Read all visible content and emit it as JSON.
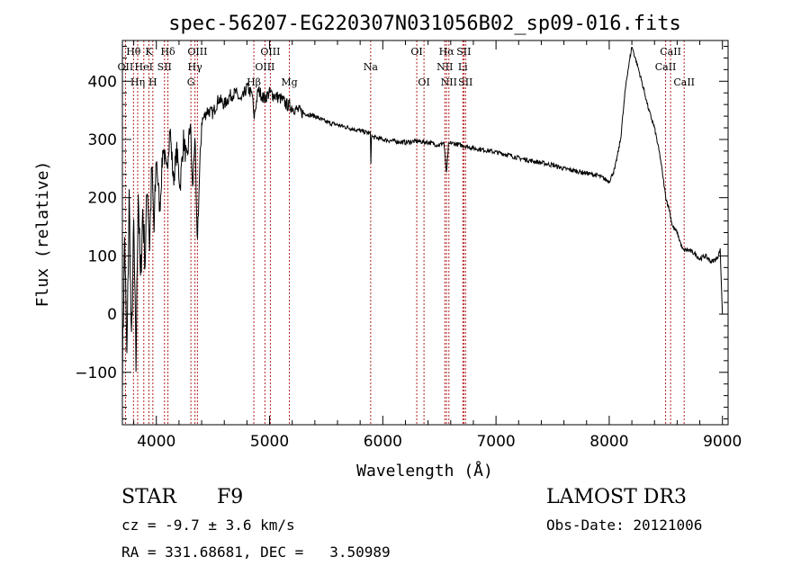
{
  "chart_data": {
    "type": "line",
    "title": "spec-56207-EG220307N031056B02_sp09-016.fits",
    "xlabel": "Wavelength (Å)",
    "ylabel": "Flux (relative)",
    "xlim": [
      3700,
      9050
    ],
    "ylim": [
      -190,
      470
    ],
    "xticks": [
      4000,
      5000,
      6000,
      7000,
      8000,
      9000
    ],
    "yticks": [
      -100,
      0,
      100,
      200,
      300,
      400
    ],
    "series": [
      {
        "x": [
          3700,
          3720,
          3740,
          3760,
          3780,
          3800,
          3820,
          3840,
          3860,
          3880,
          3900,
          3920,
          3940,
          3960,
          3980,
          4000,
          4030,
          4060,
          4090,
          4120,
          4150,
          4180,
          4210,
          4240,
          4270,
          4300,
          4320,
          4340,
          4360,
          4400,
          4450,
          4500,
          4550,
          4600,
          4650,
          4700,
          4750,
          4800,
          4850,
          4861,
          4900,
          4950,
          5000,
          5050,
          5100,
          5150,
          5200,
          5300,
          5400,
          5500,
          5600,
          5700,
          5800,
          5890,
          5895,
          5900,
          6000,
          6100,
          6200,
          6300,
          6400,
          6500,
          6540,
          6563,
          6580,
          6600,
          6700,
          6800,
          6900,
          7000,
          7100,
          7200,
          7300,
          7400,
          7500,
          7600,
          7700,
          7800,
          7900,
          8000,
          8050,
          8100,
          8150,
          8200,
          8230,
          8260,
          8300,
          8350,
          8400,
          8450,
          8500,
          8530,
          8560,
          8600,
          8650,
          8700,
          8750,
          8800,
          8850,
          8900,
          8950,
          8980,
          9000
        ],
        "y": [
          -100,
          130,
          -80,
          200,
          -60,
          150,
          -90,
          220,
          50,
          180,
          90,
          230,
          120,
          250,
          140,
          270,
          180,
          290,
          240,
          320,
          230,
          280,
          220,
          300,
          260,
          330,
          210,
          310,
          120,
          330,
          350,
          345,
          370,
          360,
          375,
          380,
          365,
          390,
          375,
          335,
          385,
          370,
          380,
          375,
          370,
          360,
          355,
          345,
          340,
          330,
          325,
          320,
          315,
          310,
          260,
          305,
          300,
          297,
          295,
          297,
          295,
          290,
          295,
          240,
          290,
          294,
          290,
          285,
          282,
          278,
          274,
          268,
          264,
          260,
          256,
          250,
          246,
          242,
          238,
          228,
          250,
          300,
          400,
          460,
          440,
          420,
          390,
          350,
          320,
          270,
          200,
          180,
          150,
          140,
          110,
          110,
          105,
          95,
          100,
          90,
          95,
          110,
          0
        ]
      }
    ],
    "line_labels": [
      {
        "text": "Hθ",
        "x": 3798,
        "row": 1
      },
      {
        "text": "OII",
        "x": 3727,
        "row": 2
      },
      {
        "text": "Hη",
        "x": 3835,
        "row": 3
      },
      {
        "text": "K",
        "x": 3934,
        "row": 1
      },
      {
        "text": "HeI",
        "x": 3889,
        "row": 2
      },
      {
        "text": "H",
        "x": 3969,
        "row": 3
      },
      {
        "text": "Hδ",
        "x": 4102,
        "row": 1
      },
      {
        "text": "SII",
        "x": 4072,
        "row": 2
      },
      {
        "text": "OIII",
        "x": 4363,
        "row": 1
      },
      {
        "text": "Hγ",
        "x": 4341,
        "row": 2
      },
      {
        "text": "G",
        "x": 4305,
        "row": 3
      },
      {
        "text": "OIII",
        "x": 5007,
        "row": 1
      },
      {
        "text": "OIII",
        "x": 4959,
        "row": 2
      },
      {
        "text": "Hβ",
        "x": 4861,
        "row": 3
      },
      {
        "text": "Mg",
        "x": 5175,
        "row": 3
      },
      {
        "text": "Na",
        "x": 5893,
        "row": 2
      },
      {
        "text": "OI",
        "x": 6300,
        "row": 1
      },
      {
        "text": "OI",
        "x": 6364,
        "row": 3
      },
      {
        "text": "Hα",
        "x": 6563,
        "row": 1
      },
      {
        "text": "SII",
        "x": 6716,
        "row": 1
      },
      {
        "text": "NII",
        "x": 6548,
        "row": 2
      },
      {
        "text": "Li",
        "x": 6707,
        "row": 2
      },
      {
        "text": "NII",
        "x": 6584,
        "row": 3
      },
      {
        "text": "SII",
        "x": 6731,
        "row": 3
      },
      {
        "text": "CaII",
        "x": 8542,
        "row": 1
      },
      {
        "text": "CaII",
        "x": 8498,
        "row": 2
      },
      {
        "text": "CaII",
        "x": 8662,
        "row": 3
      }
    ],
    "line_markers": [
      3727,
      3798,
      3835,
      3889,
      3934,
      3969,
      4072,
      4102,
      4305,
      4341,
      4363,
      4861,
      4959,
      5007,
      5175,
      5893,
      6300,
      6364,
      6548,
      6563,
      6584,
      6707,
      6716,
      6731,
      8498,
      8542,
      8662
    ],
    "colors": {
      "spectrum": "#000000",
      "markers": "#b22222"
    }
  },
  "info": {
    "class_label": "STAR",
    "subclass_label": "F9",
    "survey_label": "LAMOST DR3",
    "cz_text": "cz = -9.7 ± 3.6 km/s",
    "obs_date_text": "Obs-Date: 20121006",
    "coords_text": "RA = 331.68681, DEC =   3.50989"
  }
}
